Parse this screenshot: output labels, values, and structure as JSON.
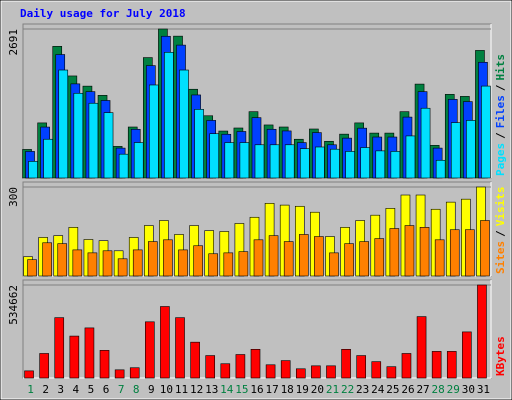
{
  "chart_data": [
    {
      "type": "bar",
      "title": "Daily usage for July 2018",
      "legend_separator": "/",
      "series": [
        {
          "name": "Hits",
          "color": "#008040",
          "values": [
            516,
            995,
            2378,
            1843,
            1659,
            1493,
            571,
            921,
            2175,
            2691,
            2562,
            1603,
            1124,
            848,
            903,
            1198,
            958,
            921,
            700,
            885,
            663,
            792,
            995,
            811,
            811,
            1198,
            1696,
            590,
            1511,
            1474,
            2304
          ]
        },
        {
          "name": "Files",
          "color": "#0040ff",
          "values": [
            480,
            920,
            2230,
            1700,
            1560,
            1400,
            540,
            880,
            2030,
            2560,
            2400,
            1500,
            1040,
            790,
            840,
            1090,
            880,
            850,
            640,
            820,
            600,
            720,
            900,
            740,
            740,
            1100,
            1560,
            540,
            1420,
            1380,
            2090
          ]
        },
        {
          "name": "Pages",
          "color": "#00e0ff",
          "values": [
            300,
            700,
            1950,
            1530,
            1350,
            1180,
            430,
            640,
            1680,
            2270,
            1950,
            1240,
            800,
            640,
            640,
            600,
            600,
            600,
            530,
            560,
            520,
            480,
            550,
            490,
            480,
            760,
            1260,
            320,
            1000,
            1040,
            1660
          ]
        }
      ],
      "ylim": [
        0,
        2691
      ],
      "yticks": [
        2691
      ]
    },
    {
      "type": "bar",
      "legend_separator": "/",
      "series": [
        {
          "name": "Visits",
          "color": "#ffff00",
          "values": [
            65,
            130,
            136,
            164,
            123,
            119,
            85,
            130,
            170,
            187,
            140,
            170,
            153,
            150,
            177,
            198,
            245,
            239,
            235,
            215,
            133,
            164,
            187,
            205,
            228,
            273,
            273,
            225,
            249,
            259,
            300
          ]
        },
        {
          "name": "Sites",
          "color": "#ff8000",
          "values": [
            55,
            112,
            109,
            88,
            78,
            85,
            58,
            88,
            116,
            122,
            88,
            102,
            75,
            78,
            82,
            122,
            136,
            116,
            140,
            133,
            78,
            109,
            116,
            126,
            160,
            170,
            164,
            122,
            156,
            156,
            187
          ]
        }
      ],
      "ylim": [
        0,
        300
      ],
      "yticks": [
        300
      ]
    },
    {
      "type": "bar",
      "categories": [
        "1",
        "2",
        "3",
        "4",
        "5",
        "6",
        "7",
        "8",
        "9",
        "10",
        "11",
        "12",
        "13",
        "14",
        "15",
        "16",
        "17",
        "18",
        "19",
        "20",
        "21",
        "22",
        "23",
        "24",
        "25",
        "26",
        "27",
        "28",
        "29",
        "30",
        "31"
      ],
      "weekend_color": "#008040",
      "weekends": [
        0,
        6,
        7,
        13,
        14,
        20,
        21,
        27,
        28
      ],
      "series": [
        {
          "name": "KBytes",
          "color": "#ff0000",
          "values": [
            41000,
            141000,
            347000,
            241000,
            288000,
            159000,
            47000,
            59000,
            323000,
            411000,
            347000,
            206000,
            129000,
            82000,
            135000,
            165000,
            76000,
            100000,
            53000,
            70000,
            70000,
            165000,
            129000,
            94000,
            65000,
            141000,
            353000,
            153000,
            153000,
            265000,
            534662
          ]
        }
      ],
      "ylim": [
        0,
        534662
      ],
      "yticks": [
        534662
      ]
    }
  ]
}
